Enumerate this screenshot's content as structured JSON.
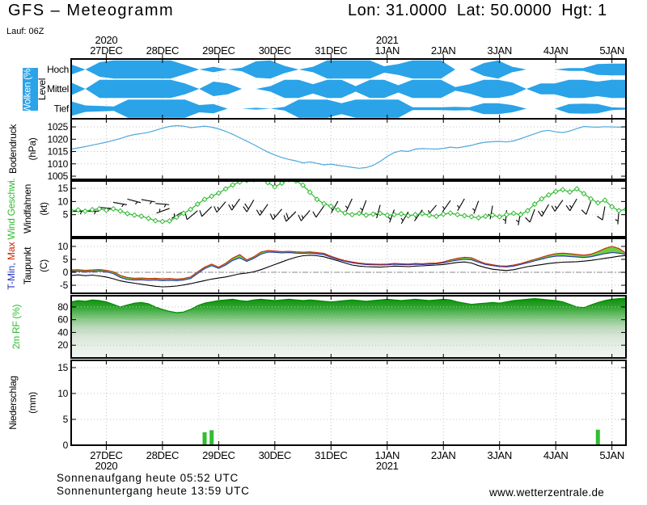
{
  "header": {
    "title": "GFS – Meteogramm",
    "coords": "Lon: 31.0000  Lat: 50.0000  Hgt: 1",
    "run": "Lauf: 06Z"
  },
  "axis": {
    "days": [
      "27DEC",
      "28DEC",
      "29DEC",
      "30DEC",
      "31DEC",
      "1JAN",
      "2JAN",
      "3JAN",
      "4JAN",
      "5JAN"
    ],
    "top_years": [
      {
        "label": "2020",
        "day": 0
      },
      {
        "label": "2021",
        "day": 5
      }
    ],
    "bottom_years": [
      {
        "label": "2020",
        "day": 0
      },
      {
        "label": "2021",
        "day": 5
      }
    ]
  },
  "footer": {
    "sunrise": "Sonnenaufgang heute 05:52 UTC",
    "sunset": "Sonnenuntergang heute 13:59 UTC",
    "website": "www.wetterzentrale.de"
  },
  "colors": {
    "cloud": "#2AA3E8",
    "pressure": "#4FA8DC",
    "wind": "#2FBB2F",
    "tmax": "#CC2200",
    "tmin": "#2233BB",
    "dew": "#000000",
    "tfill": "#6FCE3C",
    "hum_edge": "#008A00",
    "precip": "#2FBE2F",
    "grid": "#C4C4C4",
    "zero_line": "#888888"
  },
  "chart_data": [
    {
      "id": "clouds",
      "type": "area-bands",
      "label_main": "Wolken (%)",
      "label_sub": "Level",
      "levels": [
        "Hoch",
        "Mittel",
        "Tief"
      ],
      "series": {
        "hoch": [
          55,
          0,
          80,
          100,
          100,
          100,
          100,
          100,
          50,
          0,
          30,
          0,
          20,
          90,
          100,
          40,
          0,
          30,
          100,
          100,
          100,
          100,
          35,
          60,
          100,
          100,
          100,
          0,
          0,
          70,
          100,
          30,
          0,
          0,
          0,
          15,
          15,
          60,
          65,
          65
        ],
        "mittel": [
          70,
          0,
          100,
          100,
          100,
          100,
          100,
          100,
          60,
          0,
          80,
          60,
          0,
          0,
          30,
          100,
          100,
          50,
          100,
          100,
          30,
          100,
          100,
          40,
          100,
          100,
          100,
          20,
          50,
          100,
          100,
          70,
          0,
          60,
          60,
          100,
          100,
          80,
          100,
          100
        ],
        "tief": [
          80,
          35,
          30,
          25,
          100,
          100,
          100,
          100,
          100,
          40,
          50,
          0,
          0,
          10,
          0,
          20,
          100,
          100,
          100,
          60,
          100,
          100,
          100,
          100,
          15,
          15,
          15,
          20,
          15,
          60,
          60,
          40,
          0,
          0,
          0,
          50,
          55,
          50,
          15,
          10
        ]
      }
    },
    {
      "id": "pressure",
      "type": "line",
      "labels": [
        "Bodendruck",
        "(hPa)"
      ],
      "yticks": [
        1005,
        1010,
        1015,
        1020,
        1025
      ],
      "grid": [
        1010,
        1015,
        1020,
        1025
      ],
      "ylim": [
        1003.7,
        1028.3
      ],
      "values": [
        1016.0,
        1016.5,
        1017.0,
        1017.6,
        1018.2,
        1018.8,
        1019.5,
        1020.3,
        1021.2,
        1021.9,
        1022.3,
        1022.8,
        1023.6,
        1024.5,
        1025.2,
        1025.5,
        1025.3,
        1024.7,
        1025.0,
        1025.3,
        1024.9,
        1024.2,
        1023.2,
        1022.0,
        1020.6,
        1019.2,
        1017.8,
        1016.3,
        1014.8,
        1013.6,
        1012.6,
        1011.8,
        1011.2,
        1010.4,
        1010.8,
        1010.2,
        1009.6,
        1009.9,
        1009.4,
        1009.0,
        1008.6,
        1008.2,
        1008.5,
        1009.4,
        1011.0,
        1013.0,
        1014.6,
        1015.3,
        1015.0,
        1016.0,
        1016.2,
        1016.1,
        1016.0,
        1016.3,
        1016.8,
        1016.5,
        1017.0,
        1017.5,
        1018.3,
        1018.8,
        1019.0,
        1019.1,
        1018.9,
        1019.3,
        1020.2,
        1021.2,
        1022.2,
        1023.2,
        1023.6,
        1023.0,
        1022.7,
        1023.3,
        1024.3,
        1025.2,
        1025.0,
        1024.9,
        1025.1,
        1025.0,
        1024.9,
        1025.1
      ]
    },
    {
      "id": "wind",
      "type": "line+barbs",
      "labels": [
        "Wind Geschwi.",
        "Windfahnen",
        "(kt)"
      ],
      "yticks": [
        5,
        10,
        15
      ],
      "grid": [
        5,
        10,
        15
      ],
      "ylim": [
        -3.4,
        17.8
      ],
      "speed_kt": [
        6.5,
        6.8,
        6.3,
        6.9,
        7.2,
        6.7,
        7.2,
        6.4,
        5.4,
        4.8,
        4.4,
        3.6,
        2.7,
        2.4,
        2.6,
        4.0,
        5.5,
        7.0,
        9.0,
        10.8,
        12.0,
        13.2,
        14.8,
        16.3,
        17.4,
        18.0,
        18.3,
        18.5,
        17.2,
        15.6,
        17.0,
        18.3,
        17.8,
        16.2,
        13.5,
        10.8,
        9.2,
        8.2,
        6.8,
        5.6,
        5.0,
        5.5,
        4.8,
        5.2,
        5.5,
        4.8,
        5.0,
        5.3,
        4.6,
        5.0,
        5.4,
        4.8,
        4.4,
        5.2,
        5.6,
        5.0,
        4.6,
        4.2,
        3.8,
        4.4,
        4.8,
        4.2,
        5.0,
        5.5,
        5.0,
        6.5,
        9.0,
        11.0,
        12.5,
        13.8,
        14.5,
        13.6,
        14.8,
        13.0,
        11.0,
        9.5,
        10.5,
        8.0,
        6.5,
        7.0
      ],
      "barb_dirs_deg": [
        90,
        90,
        95,
        100,
        105,
        100,
        95,
        250,
        240,
        230,
        225,
        220,
        215,
        210,
        215,
        220,
        225,
        220,
        215,
        210,
        205,
        200,
        195,
        200,
        210,
        215,
        220,
        215,
        210,
        200,
        190,
        185,
        190,
        200,
        210,
        215,
        210,
        200,
        190,
        185
      ]
    },
    {
      "id": "temp",
      "type": "band+lines",
      "labels_col1": [
        {
          "t": "T-Min,",
          "c": "tmin"
        },
        {
          "t": " Max",
          "c": "tmax"
        }
      ],
      "labels": [
        "Taupunkt",
        "(C)"
      ],
      "yticks": [
        -5,
        0,
        5,
        10
      ],
      "grid": [
        -5,
        5,
        10
      ],
      "ylim": [
        -8.1,
        13.1
      ],
      "tmax": [
        0.9,
        1.0,
        0.8,
        0.9,
        1.1,
        0.8,
        0.2,
        -1.2,
        -2.0,
        -2.3,
        -2.2,
        -2.4,
        -2.3,
        -2.5,
        -2.4,
        -2.6,
        -2.4,
        -1.8,
        0.2,
        2.0,
        3.2,
        2.0,
        3.5,
        5.5,
        6.8,
        4.8,
        6.0,
        7.8,
        8.4,
        8.2,
        8.0,
        8.1,
        7.9,
        7.8,
        7.9,
        7.6,
        7.3,
        6.2,
        5.3,
        4.5,
        4.0,
        3.6,
        3.3,
        3.2,
        3.1,
        3.2,
        3.4,
        3.3,
        3.2,
        3.4,
        3.3,
        3.5,
        3.6,
        4.0,
        4.8,
        5.4,
        5.8,
        5.6,
        4.4,
        3.4,
        2.9,
        2.5,
        2.4,
        2.8,
        3.4,
        4.2,
        5.0,
        5.8,
        6.6,
        7.2,
        7.4,
        7.2,
        6.9,
        6.6,
        7.0,
        8.0,
        9.2,
        10.0,
        9.2,
        7.4
      ],
      "tmin": [
        0.3,
        0.4,
        0.2,
        0.3,
        0.5,
        0.2,
        -0.5,
        -2.0,
        -2.8,
        -3.0,
        -2.9,
        -3.1,
        -3.0,
        -3.2,
        -3.1,
        -3.2,
        -3.0,
        -2.4,
        -0.5,
        1.4,
        2.6,
        1.5,
        2.8,
        4.6,
        5.6,
        4.2,
        5.4,
        7.0,
        7.8,
        7.7,
        7.5,
        7.6,
        7.4,
        7.3,
        7.4,
        7.1,
        6.8,
        5.8,
        4.9,
        4.2,
        3.7,
        3.3,
        3.0,
        2.9,
        2.8,
        2.9,
        3.1,
        3.0,
        2.9,
        3.1,
        3.0,
        3.2,
        3.3,
        3.6,
        4.2,
        4.7,
        5.0,
        4.8,
        3.9,
        3.0,
        2.6,
        2.2,
        2.1,
        2.4,
        3.0,
        3.7,
        4.4,
        5.1,
        5.8,
        6.2,
        6.3,
        6.1,
        5.9,
        5.7,
        6.0,
        6.6,
        7.2,
        7.6,
        7.4,
        6.9
      ],
      "dew": [
        -1.2,
        -1.0,
        -1.3,
        -1.1,
        -1.4,
        -1.8,
        -2.5,
        -3.3,
        -3.8,
        -4.2,
        -4.6,
        -5.0,
        -5.4,
        -5.6,
        -5.5,
        -5.3,
        -4.9,
        -4.4,
        -3.8,
        -3.2,
        -2.6,
        -2.2,
        -1.8,
        -1.2,
        -0.6,
        -0.3,
        0.2,
        1.0,
        2.0,
        3.0,
        4.0,
        5.0,
        5.8,
        6.4,
        6.6,
        6.4,
        6.0,
        5.2,
        4.4,
        3.6,
        2.8,
        2.4,
        2.2,
        2.1,
        2.0,
        2.2,
        2.4,
        2.3,
        2.2,
        2.4,
        2.5,
        2.7,
        2.8,
        3.0,
        3.4,
        3.8,
        4.0,
        3.6,
        2.6,
        1.8,
        1.2,
        0.9,
        0.7,
        1.0,
        1.6,
        2.2,
        2.6,
        3.0,
        3.4,
        3.7,
        3.9,
        4.0,
        4.1,
        4.3,
        4.6,
        5.0,
        5.4,
        5.8,
        6.2,
        6.5
      ]
    },
    {
      "id": "humidity",
      "type": "area",
      "labels": [
        "2m RF (%)"
      ],
      "yticks": [
        20,
        40,
        60,
        80
      ],
      "grid": [
        20,
        40,
        60,
        80
      ],
      "ylim": [
        0,
        97.6
      ],
      "values": [
        88,
        90,
        89,
        91,
        90,
        88,
        84,
        80,
        83,
        86,
        87,
        85,
        80,
        76,
        73,
        71,
        72,
        76,
        82,
        86,
        88,
        90,
        91,
        92,
        90,
        89,
        91,
        92,
        91,
        90,
        91,
        92,
        91,
        90,
        91,
        90,
        89,
        88,
        89,
        90,
        91,
        90,
        89,
        90,
        91,
        92,
        91,
        90,
        91,
        92,
        91,
        90,
        91,
        92,
        91,
        88,
        86,
        84,
        85,
        86,
        87,
        86,
        88,
        90,
        91,
        92,
        93,
        92,
        91,
        90,
        88,
        84,
        80,
        79,
        83,
        87,
        90,
        92,
        93,
        94
      ]
    },
    {
      "id": "precip",
      "type": "bar",
      "labels": [
        "Niederschlag",
        "(mm)"
      ],
      "yticks": [
        0,
        5,
        10,
        15
      ],
      "grid": [
        5,
        10,
        15
      ],
      "ylim": [
        0,
        16.4
      ],
      "values": [
        0,
        0,
        0,
        0,
        0,
        0,
        0,
        0,
        0,
        0,
        0,
        0,
        0,
        0,
        0,
        0,
        0,
        0,
        0,
        2.5,
        2.9,
        0,
        0,
        0,
        0,
        0,
        0,
        0,
        0,
        0,
        0,
        0,
        0,
        0,
        0,
        0,
        0,
        0,
        0,
        0,
        0,
        0,
        0,
        0,
        0,
        0,
        0,
        0,
        0,
        0,
        0,
        0,
        0,
        0,
        0,
        0,
        0,
        0,
        0,
        0,
        0,
        0,
        0,
        0,
        0,
        0,
        0,
        0,
        0,
        0,
        0,
        0,
        0,
        0,
        0,
        3.0,
        0,
        0,
        0,
        0
      ]
    }
  ]
}
